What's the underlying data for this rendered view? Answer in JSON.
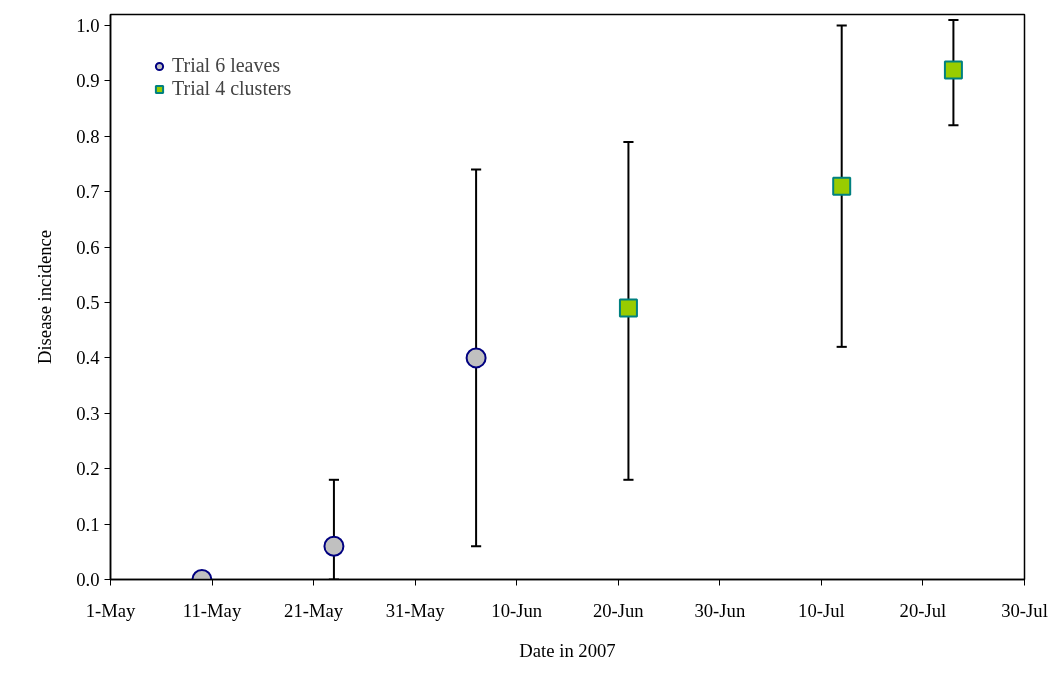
{
  "chart_data": {
    "type": "scatter",
    "xlabel": "Date in 2007",
    "ylabel": "Disease incidence",
    "xlim": [
      "2007-05-01",
      "2007-07-30"
    ],
    "ylim": [
      0,
      1.02
    ],
    "xticks": [
      {
        "value": "2007-05-01",
        "label": "1-May"
      },
      {
        "value": "2007-05-11",
        "label": "11-May"
      },
      {
        "value": "2007-05-21",
        "label": "21-May"
      },
      {
        "value": "2007-05-31",
        "label": "31-May"
      },
      {
        "value": "2007-06-10",
        "label": "10-Jun"
      },
      {
        "value": "2007-06-20",
        "label": "20-Jun"
      },
      {
        "value": "2007-06-30",
        "label": "30-Jun"
      },
      {
        "value": "2007-07-10",
        "label": "10-Jul"
      },
      {
        "value": "2007-07-20",
        "label": "20-Jul"
      },
      {
        "value": "2007-07-30",
        "label": "30-Jul"
      }
    ],
    "yticks": [
      {
        "value": 0,
        "label": "0.0"
      },
      {
        "value": 0.1,
        "label": "0.1"
      },
      {
        "value": 0.2,
        "label": "0.2"
      },
      {
        "value": 0.3,
        "label": "0.3"
      },
      {
        "value": 0.4,
        "label": "0.4"
      },
      {
        "value": 0.5,
        "label": "0.5"
      },
      {
        "value": 0.6,
        "label": "0.6"
      },
      {
        "value": 0.7,
        "label": "0.7"
      },
      {
        "value": 0.8,
        "label": "0.8"
      },
      {
        "value": 0.9,
        "label": "0.9"
      },
      {
        "value": 1.0,
        "label": "1.0"
      }
    ],
    "grid": false,
    "legend": "top left",
    "series": [
      {
        "name": "Trial 6 leaves",
        "color": "#c0c0c0",
        "marker": "circle",
        "x": [
          "2007-05-10",
          "2007-05-23",
          "2007-06-06"
        ],
        "values": [
          0.0,
          0.06,
          0.4
        ],
        "errors": [
          null,
          [
            0.0,
            0.18
          ],
          [
            0.06,
            0.74
          ]
        ]
      },
      {
        "name": "Trial 4 clusters",
        "color": "#99cc00",
        "marker": "square",
        "x": [
          "2007-06-21",
          "2007-07-12",
          "2007-07-23"
        ],
        "values": [
          0.49,
          0.71,
          0.92
        ],
        "errors": [
          [
            0.18,
            0.79
          ],
          [
            0.42,
            1.0
          ],
          [
            0.82,
            1.01
          ]
        ]
      }
    ]
  }
}
